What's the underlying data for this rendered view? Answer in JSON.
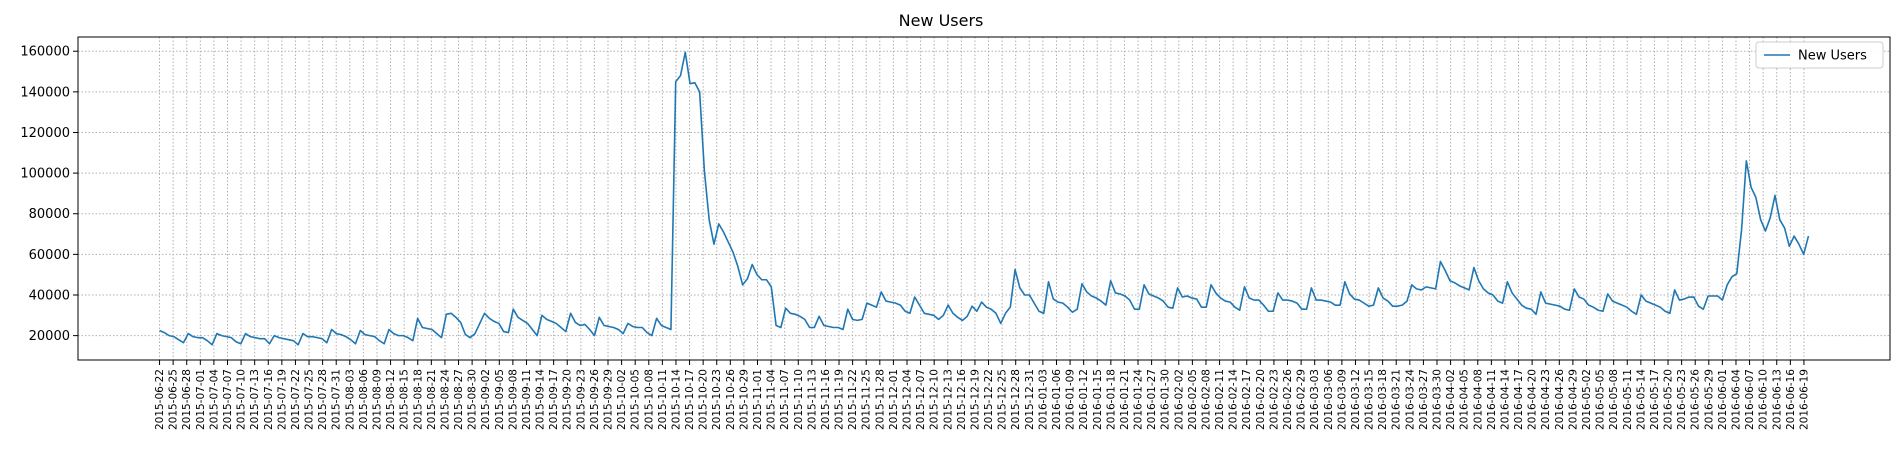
{
  "chart_data": {
    "type": "line",
    "title": "New Users",
    "xlabel": "",
    "ylabel": "",
    "grid": true,
    "legend": {
      "position": "top-right"
    },
    "line_color": "#1f77b4",
    "ylim": [
      8000,
      167000
    ],
    "yticks": [
      20000,
      40000,
      60000,
      80000,
      100000,
      120000,
      140000,
      160000
    ],
    "x_start": "2015-06-22",
    "x_end": "2016-06-20",
    "xticks": [
      "2015-06-22",
      "2015-06-25",
      "2015-06-28",
      "2015-07-01",
      "2015-07-04",
      "2015-07-07",
      "2015-07-10",
      "2015-07-13",
      "2015-07-16",
      "2015-07-19",
      "2015-07-22",
      "2015-07-25",
      "2015-07-28",
      "2015-07-31",
      "2015-08-03",
      "2015-08-06",
      "2015-08-09",
      "2015-08-12",
      "2015-08-15",
      "2015-08-18",
      "2015-08-21",
      "2015-08-24",
      "2015-08-27",
      "2015-08-30",
      "2015-09-02",
      "2015-09-05",
      "2015-09-08",
      "2015-09-11",
      "2015-09-14",
      "2015-09-17",
      "2015-09-20",
      "2015-09-23",
      "2015-09-26",
      "2015-09-29",
      "2015-10-02",
      "2015-10-05",
      "2015-10-08",
      "2015-10-11",
      "2015-10-14",
      "2015-10-17",
      "2015-10-20",
      "2015-10-23",
      "2015-10-26",
      "2015-10-29",
      "2015-11-01",
      "2015-11-04",
      "2015-11-07",
      "2015-11-10",
      "2015-11-13",
      "2015-11-16",
      "2015-11-19",
      "2015-11-22",
      "2015-11-25",
      "2015-11-28",
      "2015-12-01",
      "2015-12-04",
      "2015-12-07",
      "2015-12-10",
      "2015-12-13",
      "2015-12-16",
      "2015-12-19",
      "2015-12-22",
      "2015-12-25",
      "2015-12-28",
      "2015-12-31",
      "2016-01-03",
      "2016-01-06",
      "2016-01-09",
      "2016-01-12",
      "2016-01-15",
      "2016-01-18",
      "2016-01-21",
      "2016-01-24",
      "2016-01-27",
      "2016-01-30",
      "2016-02-02",
      "2016-02-05",
      "2016-02-08",
      "2016-02-11",
      "2016-02-14",
      "2016-02-17",
      "2016-02-20",
      "2016-02-23",
      "2016-02-26",
      "2016-02-29",
      "2016-03-03",
      "2016-03-06",
      "2016-03-09",
      "2016-03-12",
      "2016-03-15",
      "2016-03-18",
      "2016-03-21",
      "2016-03-24",
      "2016-03-27",
      "2016-03-30",
      "2016-04-02",
      "2016-04-05",
      "2016-04-08",
      "2016-04-11",
      "2016-04-14",
      "2016-04-17",
      "2016-04-20",
      "2016-04-23",
      "2016-04-26",
      "2016-04-29",
      "2016-05-02",
      "2016-05-05",
      "2016-05-08",
      "2016-05-11",
      "2016-05-14",
      "2016-05-17",
      "2016-05-20",
      "2016-05-23",
      "2016-05-26",
      "2016-05-29",
      "2016-06-01",
      "2016-06-04",
      "2016-06-07",
      "2016-06-10",
      "2016-06-13",
      "2016-06-16",
      "2016-06-19"
    ],
    "series": [
      {
        "name": "New Users",
        "values": [
          22500,
          21500,
          20000,
          19500,
          18000,
          16500,
          21000,
          19500,
          19000,
          19000,
          17500,
          15500,
          21000,
          20000,
          19500,
          19000,
          17000,
          16000,
          21000,
          19500,
          19000,
          18500,
          18500,
          16000,
          20000,
          19000,
          18500,
          18000,
          17500,
          15500,
          21000,
          19500,
          19500,
          19000,
          18500,
          16500,
          23000,
          21000,
          20500,
          19500,
          18000,
          16000,
          22500,
          20500,
          20000,
          19500,
          17500,
          16000,
          23000,
          21000,
          20000,
          20000,
          19000,
          17500,
          28500,
          24000,
          23500,
          23000,
          21000,
          19000,
          30500,
          31000,
          29000,
          26500,
          20500,
          19000,
          21000,
          26000,
          31000,
          28500,
          27000,
          26000,
          22000,
          21500,
          33000,
          29000,
          27500,
          26000,
          23000,
          20000,
          30000,
          28000,
          27000,
          26000,
          24000,
          22000,
          31000,
          26500,
          25000,
          25500,
          23000,
          20000,
          29000,
          25000,
          24500,
          24000,
          23000,
          21000,
          26000,
          24500,
          24000,
          24000,
          21500,
          20000,
          28500,
          25000,
          24000,
          23000,
          145000,
          148000,
          159500,
          144000,
          144500,
          140000,
          101000,
          77000,
          65000,
          75000,
          71000,
          66000,
          61000,
          54000,
          45000,
          48000,
          55000,
          50000,
          47500,
          47500,
          44000,
          25000,
          24000,
          33500,
          31000,
          30500,
          29500,
          28000,
          24000,
          24000,
          29500,
          25000,
          24500,
          24000,
          24000,
          23000,
          33000,
          28000,
          27500,
          28000,
          36000,
          35000,
          34000,
          41500,
          37000,
          36500,
          36000,
          35000,
          32000,
          31000,
          39000,
          35000,
          31000,
          30500,
          30000,
          28000,
          30000,
          35000,
          31000,
          29000,
          27500,
          29500,
          34500,
          32000,
          36500,
          34000,
          33000,
          31000,
          26000,
          31000,
          34000,
          52500,
          43500,
          40000,
          40000,
          36000,
          32000,
          31000,
          46500,
          38000,
          36500,
          36000,
          34000,
          31500,
          33000,
          45500,
          41500,
          39500,
          38500,
          37000,
          35000,
          47000,
          41000,
          40500,
          39500,
          37500,
          33000,
          33000,
          45000,
          40500,
          39500,
          38500,
          37000,
          34000,
          33500,
          43500,
          39000,
          39500,
          38500,
          38000,
          34000,
          34000,
          45000,
          41000,
          38500,
          37000,
          36500,
          34000,
          32500,
          44000,
          38500,
          37500,
          37500,
          35000,
          32000,
          32000,
          41000,
          37500,
          37500,
          37000,
          36000,
          33000,
          33000,
          43500,
          37500,
          37500,
          37000,
          36500,
          35000,
          35000,
          46500,
          40500,
          38000,
          37500,
          36000,
          34500,
          35000,
          43500,
          38500,
          37000,
          34500,
          34500,
          35000,
          37000,
          45000,
          43000,
          42500,
          44000,
          43500,
          43000,
          56500,
          52000,
          47000,
          46000,
          44500,
          43500,
          42500,
          53500,
          47000,
          43000,
          41000,
          40000,
          37000,
          36000,
          46500,
          41000,
          38000,
          35000,
          33500,
          33000,
          30500,
          41500,
          36000,
          35500,
          35000,
          34500,
          33000,
          32500,
          43000,
          39000,
          38000,
          35000,
          34000,
          32500,
          32000,
          40500,
          37000,
          36000,
          35000,
          34000,
          32000,
          30500,
          40000,
          37000,
          36000,
          35000,
          34000,
          32000,
          31000,
          42500,
          37500,
          38000,
          39000,
          39000,
          34500,
          33000,
          39500,
          39500,
          39500,
          37500,
          45000,
          49000,
          50500,
          72000,
          106000,
          93000,
          88000,
          77000,
          71500,
          78000,
          89000,
          77000,
          73000,
          64000,
          69000,
          65000,
          60000,
          69000
        ]
      }
    ]
  }
}
